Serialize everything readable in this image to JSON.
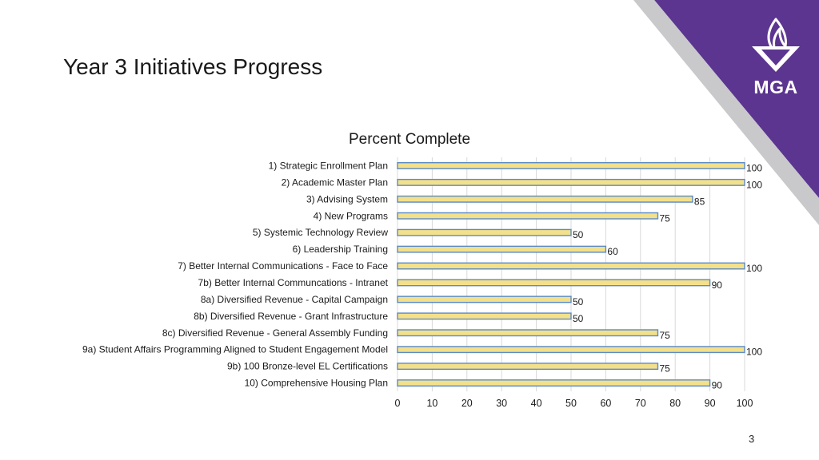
{
  "slide": {
    "title": "Year 3 Initiatives Progress",
    "page_number": "3",
    "logo_text": "MGA",
    "logo_icon": "flame-in-bowl-icon"
  },
  "colors": {
    "accent_purple": "#5c3590",
    "bar_fill": "#f3e08a",
    "bar_border": "#5b8ac6"
  },
  "chart_data": {
    "type": "bar",
    "orientation": "horizontal",
    "title": "Percent Complete",
    "categories": [
      "1) Strategic Enrollment Plan",
      "2) Academic Master Plan",
      "3) Advising System",
      "4) New Programs",
      "5) Systemic Technology Review",
      "6) Leadership Training",
      "7) Better Internal Communications - Face to Face",
      "7b) Better Internal Communcations - Intranet",
      "8a) Diversified Revenue - Capital Campaign",
      "8b) Diversified Revenue - Grant Infrastructure",
      "8c) Diversified Revenue - General Assembly Funding",
      "9a) Student Affairs Programming Aligned to Student Engagement Model",
      "9b) 100 Bronze-level EL Certifications",
      "10) Comprehensive Housing Plan"
    ],
    "values": [
      100,
      100,
      85,
      75,
      50,
      60,
      100,
      90,
      50,
      50,
      75,
      100,
      75,
      90
    ],
    "data_labels": [
      "100",
      "100",
      "85",
      "75",
      "50",
      "60",
      "100",
      "90",
      "50",
      "50",
      "75",
      "100",
      "75",
      "90"
    ],
    "xlim": [
      0,
      100
    ],
    "x_ticks": [
      "0",
      "10",
      "20",
      "30",
      "40",
      "50",
      "60",
      "70",
      "80",
      "90",
      "100"
    ],
    "grid": true,
    "legend": "none"
  }
}
